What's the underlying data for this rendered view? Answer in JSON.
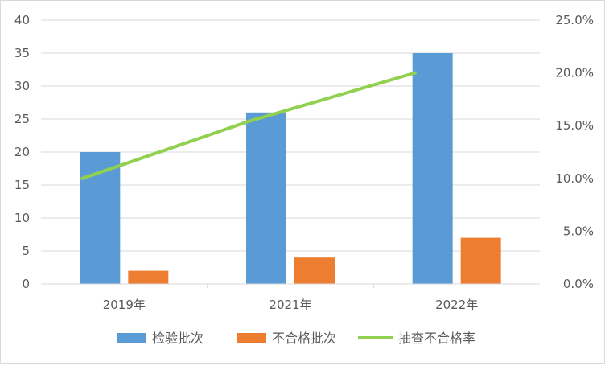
{
  "chart_data": {
    "type": "bar",
    "categories": [
      "2019年",
      "2021年",
      "2022年"
    ],
    "series": [
      {
        "name": "检验批次",
        "type": "bar",
        "axis": "left",
        "color": "#5b9bd5",
        "values": [
          20,
          26,
          35
        ]
      },
      {
        "name": "不合格批次",
        "type": "bar",
        "axis": "left",
        "color": "#ed7d31",
        "values": [
          2,
          4,
          7
        ]
      },
      {
        "name": "抽查不合格率",
        "type": "line",
        "axis": "right",
        "color": "#92d050",
        "values": [
          0.1,
          0.154,
          0.2
        ]
      }
    ],
    "y_left": {
      "min": 0,
      "max": 40,
      "step": 5,
      "ticks": [
        "0",
        "5",
        "10",
        "15",
        "20",
        "25",
        "30",
        "35",
        "40"
      ]
    },
    "y_right": {
      "min": 0,
      "max": 0.25,
      "step": 0.05,
      "ticks": [
        "0.0%",
        "5.0%",
        "10.0%",
        "15.0%",
        "20.0%",
        "25.0%"
      ]
    },
    "grid": true,
    "legend_position": "bottom"
  }
}
